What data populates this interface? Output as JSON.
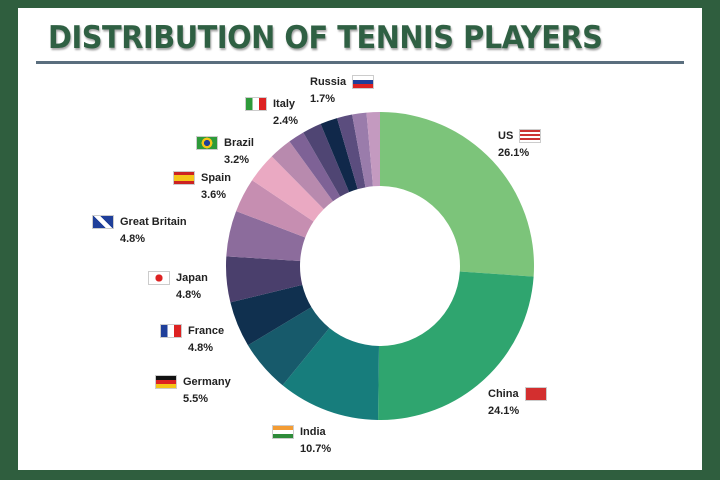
{
  "chart_data": {
    "type": "pie",
    "variant": "donut",
    "title": "DISTRIBUTION OF TENNIS PLAYERS",
    "categories": [
      "US",
      "China",
      "India",
      "Germany",
      "France",
      "Japan",
      "Great Britain",
      "Spain",
      "Brazil",
      "Italy",
      "Russia",
      "",
      "",
      "",
      "",
      ""
    ],
    "values": [
      26.1,
      24.1,
      10.7,
      5.5,
      4.8,
      4.8,
      4.8,
      3.6,
      3.2,
      2.4,
      1.7,
      2.0,
      1.8,
      1.6,
      1.5,
      1.4
    ],
    "labels": [
      "26.1%",
      "24.1%",
      "10.7%",
      "5.5%",
      "4.8%",
      "4.8%",
      "4.8%",
      "3.6%",
      "3.2%",
      "2.4%",
      "1.7%",
      "",
      "",
      "",
      "",
      ""
    ],
    "colors": [
      "#7cc47a",
      "#2fa56f",
      "#177d7c",
      "#175a6b",
      "#10304f",
      "#4a3f6c",
      "#8c6c9c",
      "#c68eb1",
      "#eaa9c2",
      "#b88aae",
      "#7e6296",
      "#4f4573",
      "#10284a",
      "#5b4d7e",
      "#9a7cab",
      "#c49ac0"
    ]
  }
}
